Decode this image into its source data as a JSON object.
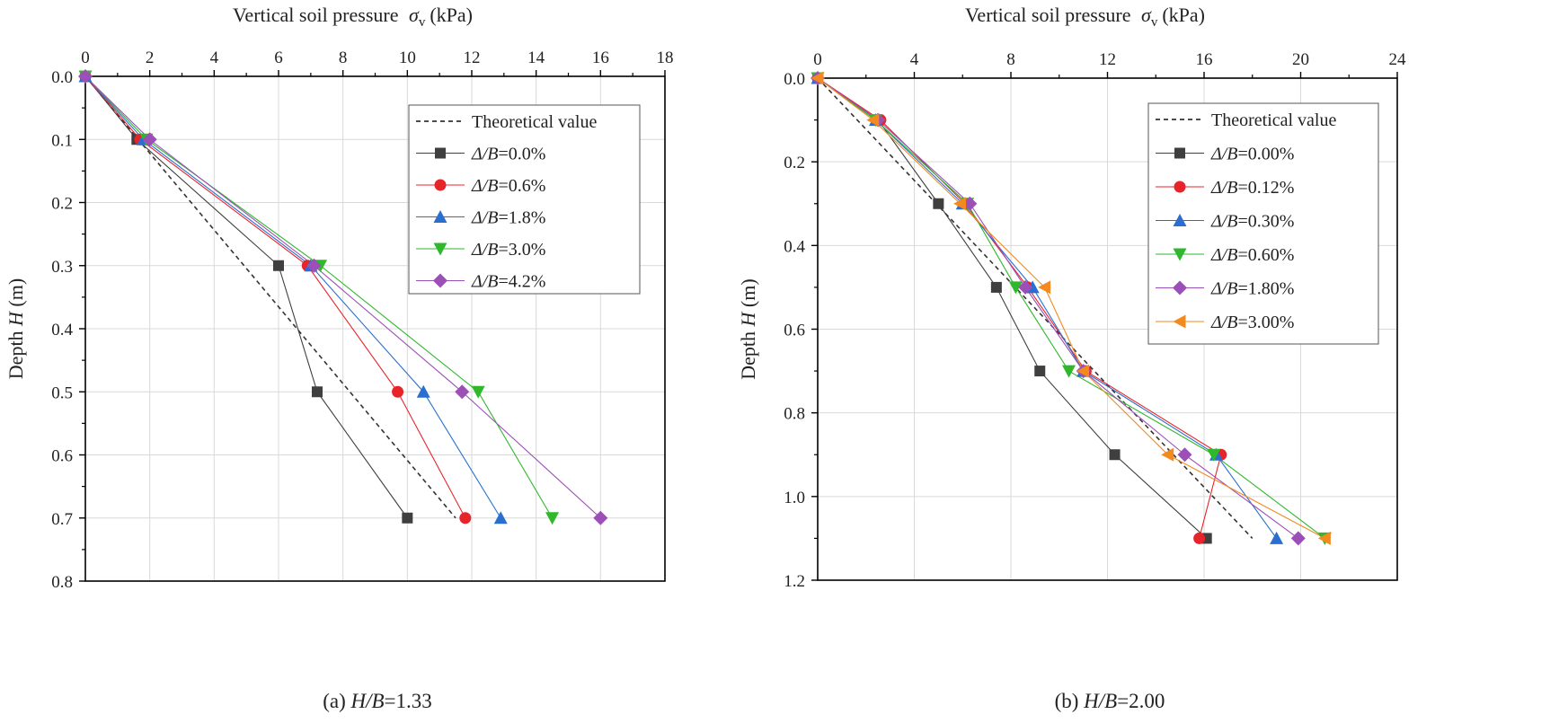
{
  "chart_data": [
    {
      "type": "line",
      "panel_caption": {
        "prefix": "(a) ",
        "var": "H/B",
        "value": "=1.33"
      },
      "xlabel": {
        "text": "Vertical soil pressure",
        "symbol": "σ",
        "sub": "v",
        "unit": "(kPa)"
      },
      "ylabel": {
        "text": "Depth",
        "symbol": "H",
        "unit": "(m)"
      },
      "x_axis_position": "top",
      "y_inverted": true,
      "xlim": [
        0,
        18
      ],
      "ylim": [
        0,
        0.8
      ],
      "xticks": [
        0,
        2,
        4,
        6,
        8,
        10,
        12,
        14,
        16,
        18
      ],
      "xtick_labels": [
        "0",
        "2",
        "4",
        "6",
        "8",
        "10",
        "12",
        "14",
        "16",
        "18"
      ],
      "yticks": [
        0,
        0.1,
        0.2,
        0.3,
        0.4,
        0.5,
        0.6,
        0.7,
        0.8
      ],
      "ytick_labels": [
        "0.0",
        "0.1",
        "0.2",
        "0.3",
        "0.4",
        "0.5",
        "0.6",
        "0.7",
        "0.8"
      ],
      "grid": true,
      "legend_position": "top-right",
      "theoretical": {
        "label": "Theoretical value",
        "color": "#333333",
        "points": [
          [
            0,
            0
          ],
          [
            11.5,
            0.7
          ]
        ]
      },
      "series": [
        {
          "var": "Δ/B",
          "value": "=0.0%",
          "color": "#3f3f3f",
          "marker": "square",
          "points": [
            [
              0,
              0
            ],
            [
              1.6,
              0.1
            ],
            [
              6.0,
              0.3
            ],
            [
              7.2,
              0.5
            ],
            [
              10.0,
              0.7
            ]
          ]
        },
        {
          "var": "Δ/B",
          "value": "=0.6%",
          "color": "#e8242b",
          "marker": "circle",
          "points": [
            [
              0,
              0
            ],
            [
              1.7,
              0.1
            ],
            [
              6.9,
              0.3
            ],
            [
              9.7,
              0.5
            ],
            [
              11.8,
              0.7
            ]
          ]
        },
        {
          "var": "Δ/B",
          "value": "=1.8%",
          "color": "#2a6fcf",
          "marker": "triangle-up",
          "points": [
            [
              0,
              0
            ],
            [
              1.8,
              0.1
            ],
            [
              7.0,
              0.3
            ],
            [
              10.5,
              0.5
            ],
            [
              12.9,
              0.7
            ]
          ]
        },
        {
          "var": "Δ/B",
          "value": "=3.0%",
          "color": "#2fb82c",
          "marker": "triangle-down",
          "points": [
            [
              0,
              0
            ],
            [
              1.9,
              0.1
            ],
            [
              7.3,
              0.3
            ],
            [
              12.2,
              0.5
            ],
            [
              14.5,
              0.7
            ]
          ]
        },
        {
          "var": "Δ/B",
          "value": "=4.2%",
          "color": "#9b4fb7",
          "marker": "diamond",
          "points": [
            [
              0,
              0
            ],
            [
              2.0,
              0.1
            ],
            [
              7.1,
              0.3
            ],
            [
              11.7,
              0.5
            ],
            [
              16.0,
              0.7
            ]
          ]
        }
      ]
    },
    {
      "type": "line",
      "panel_caption": {
        "prefix": "(b) ",
        "var": "H/B",
        "value": "=2.00"
      },
      "xlabel": {
        "text": "Vertical soil pressure",
        "symbol": "σ",
        "sub": "v",
        "unit": "(kPa)"
      },
      "ylabel": {
        "text": "Depth",
        "symbol": "H",
        "unit": "(m)"
      },
      "x_axis_position": "top",
      "y_inverted": true,
      "xlim": [
        0,
        24
      ],
      "ylim": [
        0,
        1.2
      ],
      "xticks": [
        0,
        4,
        8,
        12,
        16,
        20,
        24
      ],
      "xtick_labels": [
        "0",
        "4",
        "8",
        "12",
        "16",
        "20",
        "24"
      ],
      "yticks": [
        0,
        0.2,
        0.4,
        0.6,
        0.8,
        1.0,
        1.2
      ],
      "ytick_labels": [
        "0.0",
        "0.2",
        "0.4",
        "0.6",
        "0.8",
        "1.0",
        "1.2"
      ],
      "grid": true,
      "legend_position": "top-right",
      "theoretical": {
        "label": "Theoretical value",
        "color": "#333333",
        "points": [
          [
            0,
            0
          ],
          [
            18.0,
            1.1
          ]
        ]
      },
      "series": [
        {
          "var": "Δ/B",
          "value": "=0.00%",
          "color": "#3f3f3f",
          "marker": "square",
          "points": [
            [
              0,
              0
            ],
            [
              2.5,
              0.1
            ],
            [
              5.0,
              0.3
            ],
            [
              7.4,
              0.5
            ],
            [
              9.2,
              0.7
            ],
            [
              12.3,
              0.9
            ],
            [
              16.1,
              1.1
            ]
          ]
        },
        {
          "var": "Δ/B",
          "value": "=0.12%",
          "color": "#e8242b",
          "marker": "circle",
          "points": [
            [
              0,
              0
            ],
            [
              2.6,
              0.1
            ],
            [
              6.1,
              0.3
            ],
            [
              8.7,
              0.5
            ],
            [
              11.1,
              0.7
            ],
            [
              16.7,
              0.9
            ],
            [
              15.8,
              1.1
            ]
          ]
        },
        {
          "var": "Δ/B",
          "value": "=0.30%",
          "color": "#2a6fcf",
          "marker": "triangle-up",
          "points": [
            [
              0,
              0
            ],
            [
              2.4,
              0.1
            ],
            [
              6.0,
              0.3
            ],
            [
              8.9,
              0.5
            ],
            [
              11.0,
              0.7
            ],
            [
              16.5,
              0.9
            ],
            [
              19.0,
              1.1
            ]
          ]
        },
        {
          "var": "Δ/B",
          "value": "=0.60%",
          "color": "#2fb82c",
          "marker": "triangle-down",
          "points": [
            [
              0,
              0
            ],
            [
              2.4,
              0.1
            ],
            [
              6.2,
              0.3
            ],
            [
              8.2,
              0.5
            ],
            [
              10.4,
              0.7
            ],
            [
              16.4,
              0.9
            ],
            [
              21.0,
              1.1
            ]
          ]
        },
        {
          "var": "Δ/B",
          "value": "=1.80%",
          "color": "#9b4fb7",
          "marker": "diamond",
          "points": [
            [
              0,
              0
            ],
            [
              2.5,
              0.1
            ],
            [
              6.3,
              0.3
            ],
            [
              8.6,
              0.5
            ],
            [
              11.0,
              0.7
            ],
            [
              15.2,
              0.9
            ],
            [
              19.9,
              1.1
            ]
          ]
        },
        {
          "var": "Δ/B",
          "value": "=3.00%",
          "color": "#f28a1e",
          "marker": "triangle-left",
          "points": [
            [
              0,
              0
            ],
            [
              2.3,
              0.1
            ],
            [
              5.9,
              0.3
            ],
            [
              9.4,
              0.5
            ],
            [
              11.0,
              0.7
            ],
            [
              14.5,
              0.9
            ],
            [
              21.0,
              1.1
            ]
          ]
        }
      ]
    }
  ]
}
